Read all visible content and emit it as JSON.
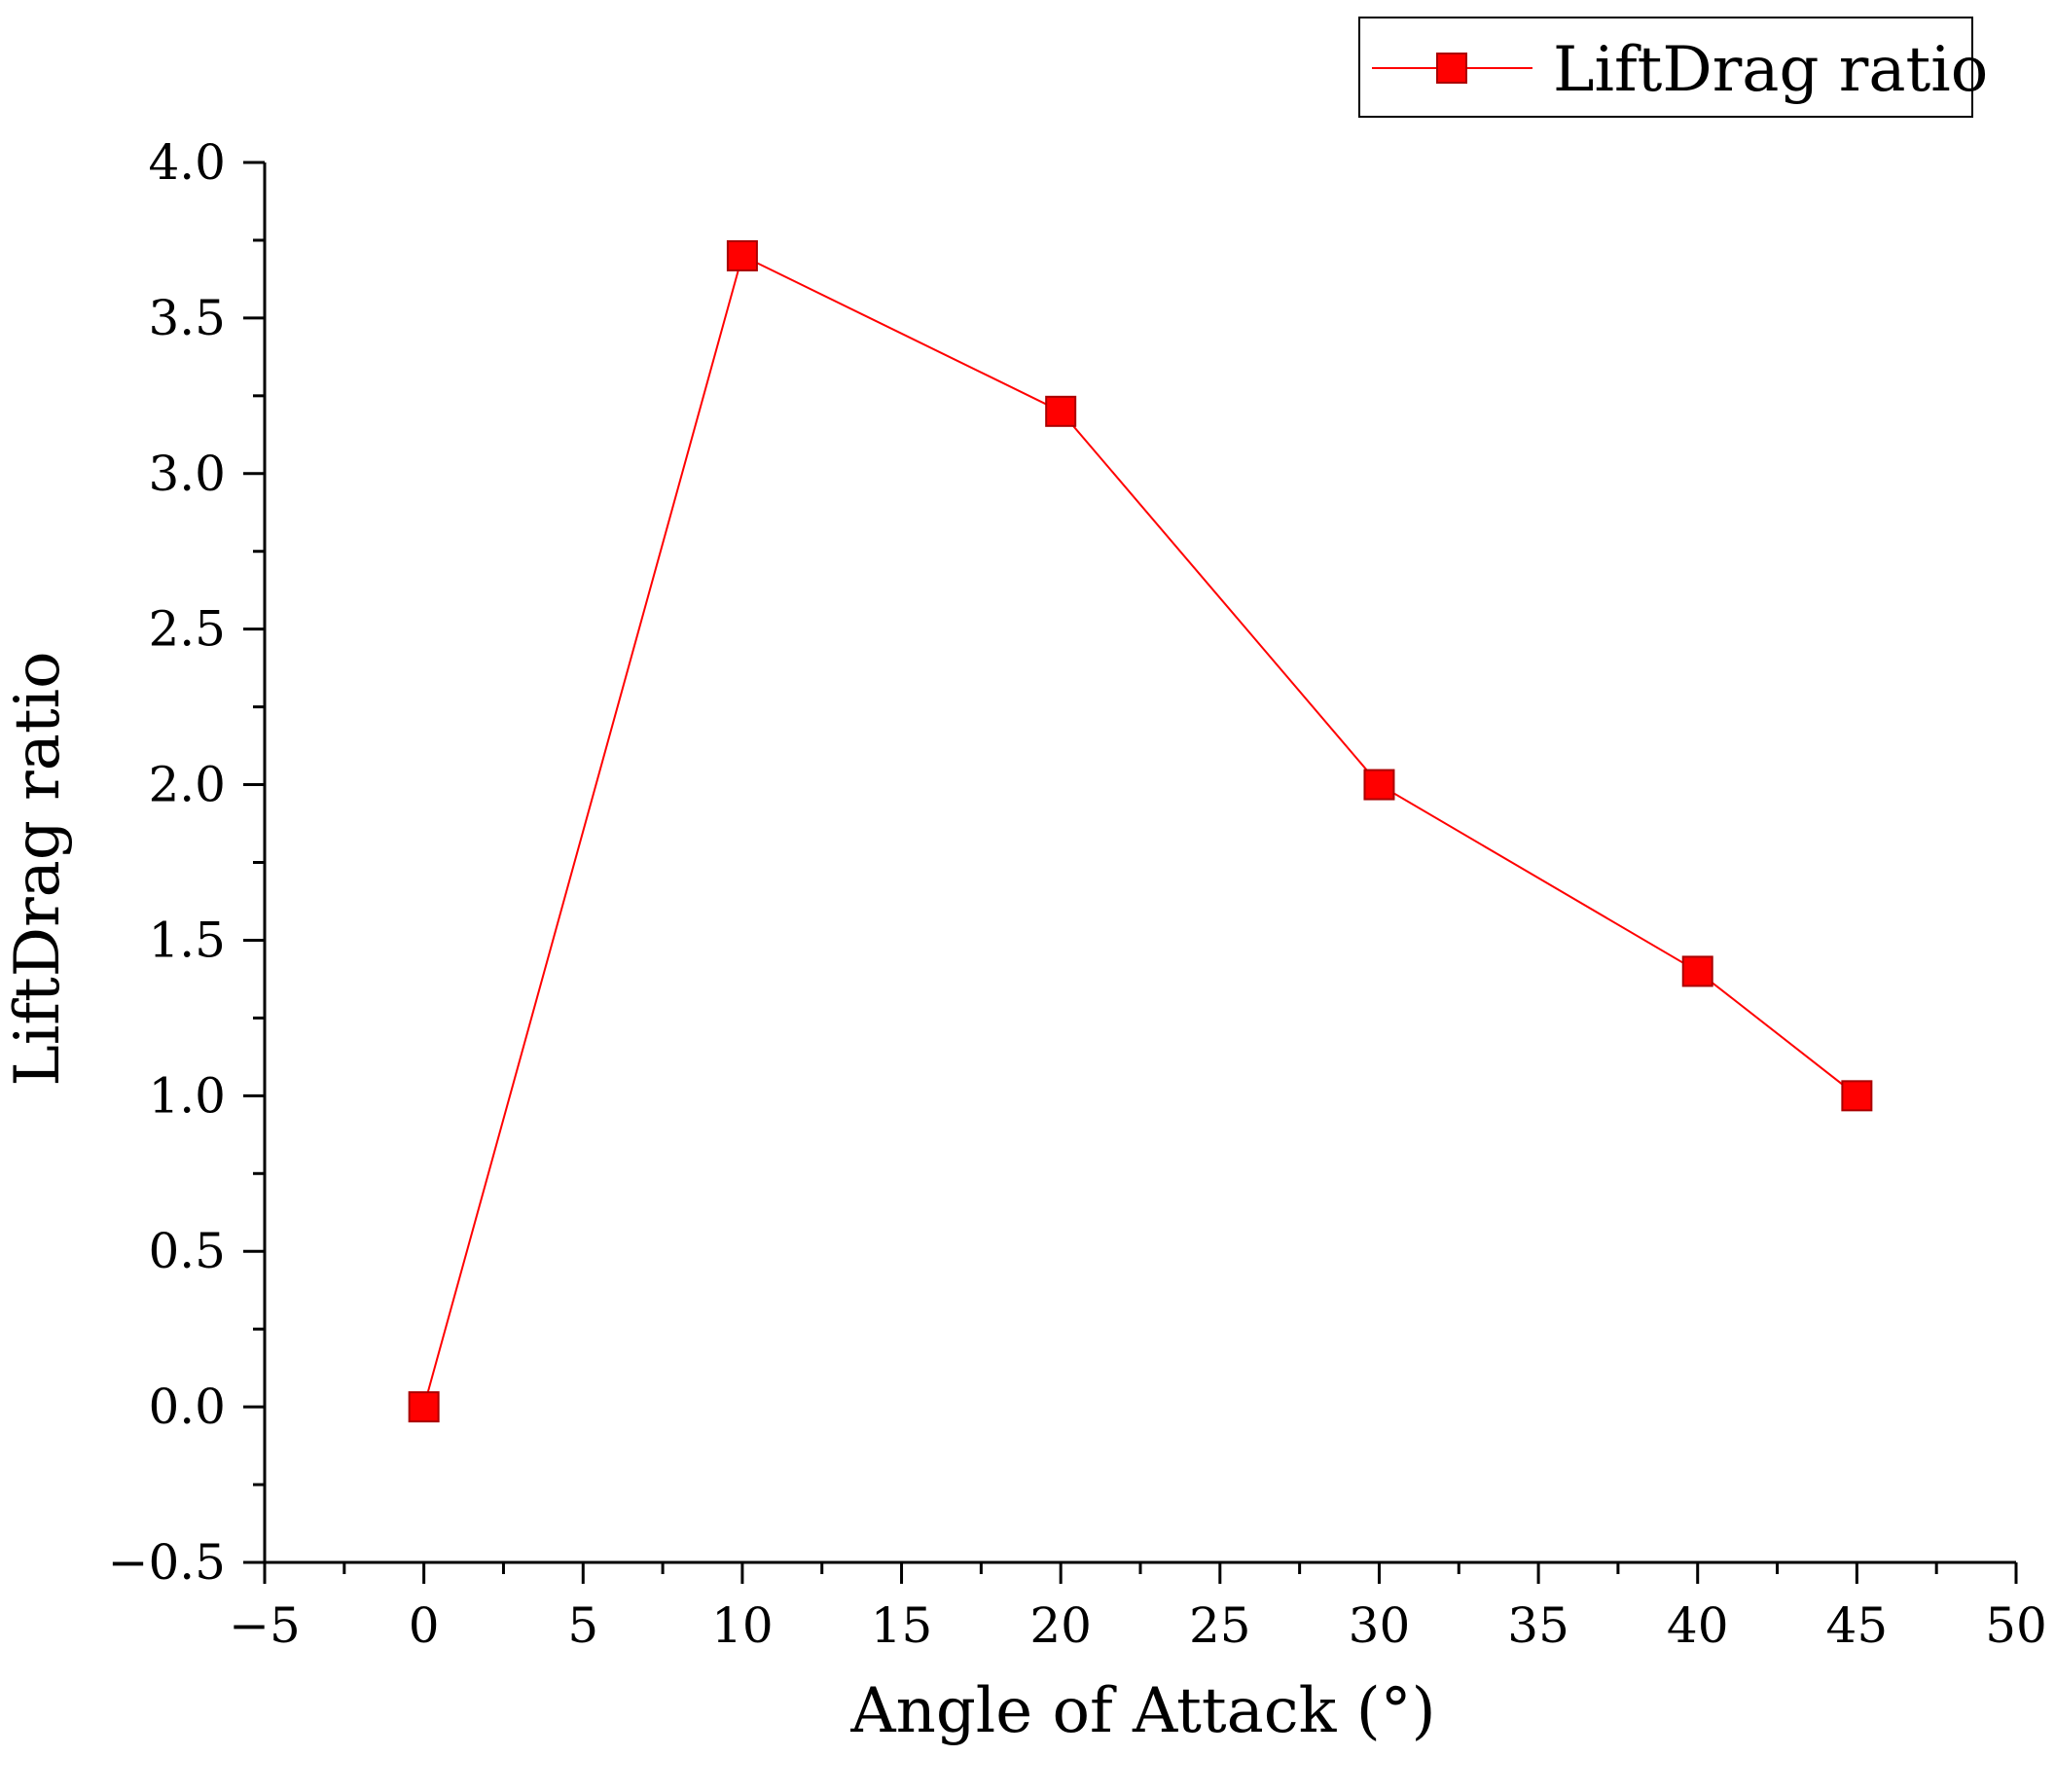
{
  "chart_data": {
    "type": "line",
    "title": "",
    "xlabel": "Angle of Attack (°)",
    "ylabel": "LiftDrag ratio",
    "xlim": [
      -5,
      50
    ],
    "ylim": [
      -0.5,
      4.0
    ],
    "xticks": [
      -5,
      0,
      5,
      10,
      15,
      20,
      25,
      30,
      35,
      40,
      45,
      50
    ],
    "xtick_labels": [
      "−5",
      "0",
      "5",
      "10",
      "15",
      "20",
      "25",
      "30",
      "35",
      "40",
      "45",
      "50"
    ],
    "yticks": [
      -0.5,
      0.0,
      0.5,
      1.0,
      1.5,
      2.0,
      2.5,
      3.0,
      3.5,
      4.0
    ],
    "ytick_labels": [
      "−0.5",
      "0.0",
      "0.5",
      "1.0",
      "1.5",
      "2.0",
      "2.5",
      "3.0",
      "3.5",
      "4.0"
    ],
    "grid": false,
    "legend": {
      "position": "top-right",
      "entries": [
        "LiftDrag ratio"
      ]
    },
    "series": [
      {
        "name": "LiftDrag ratio",
        "color": "#ff0000",
        "marker": "square",
        "x": [
          0,
          10,
          20,
          30,
          40,
          45
        ],
        "y": [
          0.0,
          3.7,
          3.2,
          2.0,
          1.4,
          1.0
        ]
      }
    ]
  }
}
